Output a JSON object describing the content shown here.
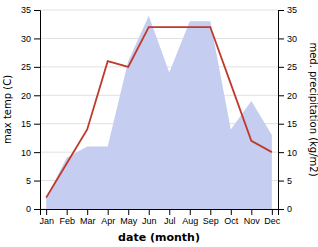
{
  "chart_data": {
    "type": "line",
    "categories": [
      "Jan",
      "Feb",
      "Mar",
      "Apr",
      "May",
      "Jun",
      "Jul",
      "Aug",
      "Sep",
      "Oct",
      "Nov",
      "Dec"
    ],
    "xlabel": "date (month)",
    "ylabel": "max temp (C)",
    "y2label": "med. precipitation (kg/m2)",
    "series": [
      {
        "type": "area",
        "axis": "y2",
        "color": "#c5cdf0",
        "values": [
          2,
          9,
          11,
          11,
          26,
          34,
          24,
          33,
          33,
          14,
          19,
          13
        ]
      },
      {
        "type": "line",
        "color": "#c0392b",
        "values": [
          2,
          8,
          14,
          26,
          25,
          32,
          32,
          32,
          32,
          22,
          12,
          10
        ]
      }
    ],
    "ylim": [
      0,
      35
    ],
    "yticks": [
      0,
      5,
      10,
      15,
      20,
      25,
      30,
      35
    ],
    "y2lim": [
      0,
      35
    ],
    "y2ticks": [
      0,
      5,
      10,
      15,
      20,
      25,
      30,
      35
    ],
    "grid": true
  }
}
